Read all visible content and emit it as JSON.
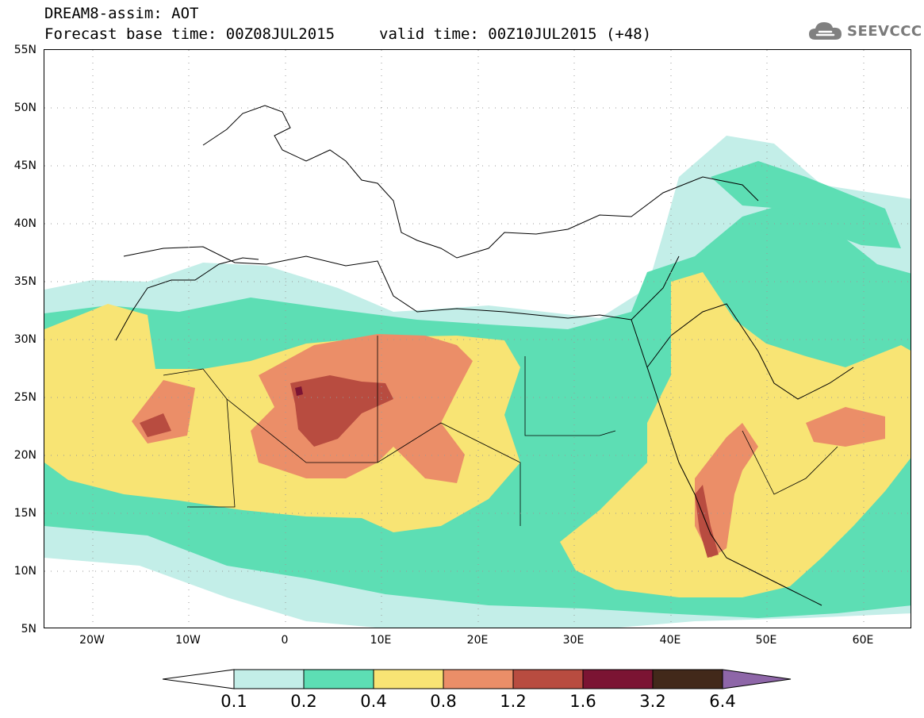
{
  "header": {
    "line1": "DREAM8-assim: AOT",
    "line2": "Forecast base time: 00Z08JUL2015",
    "valid": "valid time: 00Z10JUL2015 (+48)"
  },
  "brand": {
    "name": "SEEVCCC",
    "icon": "cloud-icon",
    "color": "#7a7a7a"
  },
  "axes": {
    "lat_labels": [
      "55N",
      "50N",
      "45N",
      "40N",
      "35N",
      "30N",
      "25N",
      "20N",
      "15N",
      "10N",
      "5N"
    ],
    "lon_labels": [
      "20W",
      "10W",
      "0",
      "10E",
      "20E",
      "30E",
      "40E",
      "50E",
      "60E"
    ],
    "lon_range": [
      -25,
      65
    ],
    "lat_range": [
      5,
      55
    ]
  },
  "legend": {
    "labels": [
      "0.1",
      "0.2",
      "0.4",
      "0.8",
      "1.2",
      "1.6",
      "3.2",
      "6.4"
    ],
    "colors": [
      "#ffffff",
      "#c3eee8",
      "#5ddeb4",
      "#f8e474",
      "#eb8e68",
      "#b84c40",
      "#7b1433",
      "#42291a",
      "#8e66a8"
    ]
  }
}
